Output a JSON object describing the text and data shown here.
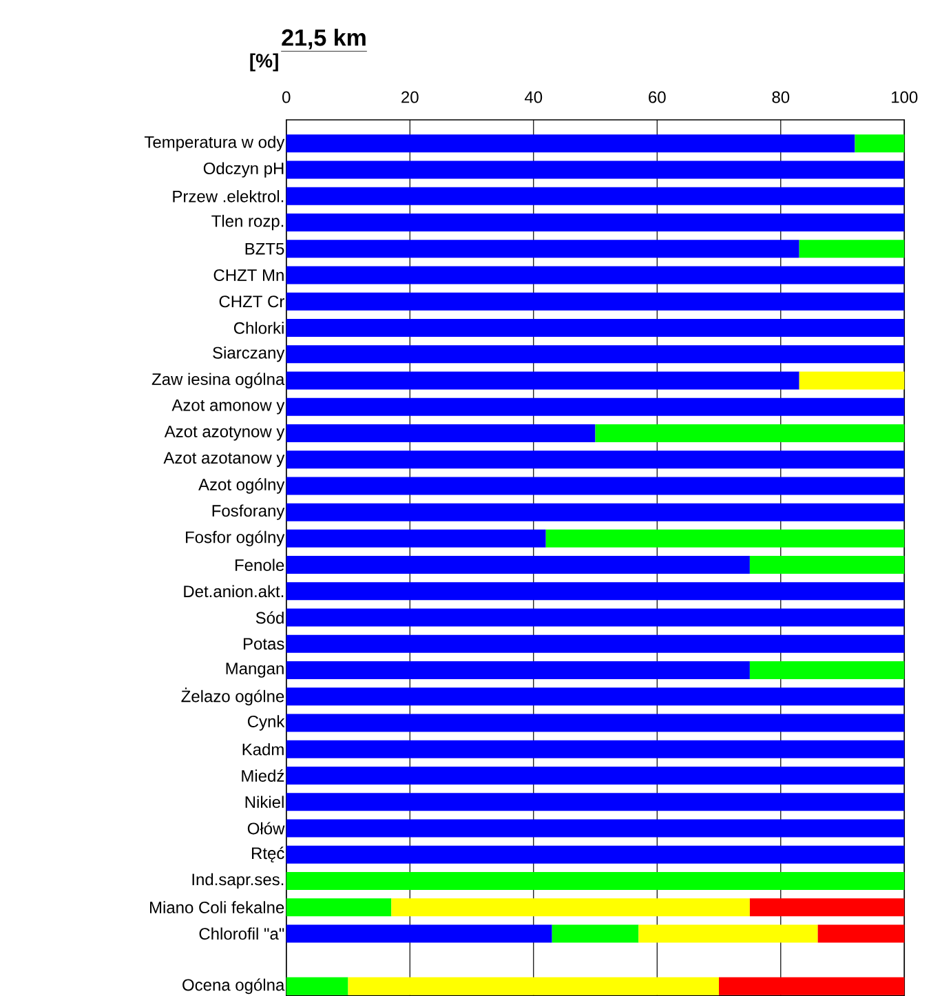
{
  "chart_data": {
    "type": "bar",
    "orientation": "horizontal",
    "stacked": true,
    "title": "21,5 km",
    "xlabel": "[%]",
    "categories": [
      "Temperatura w ody",
      "Odczyn pH",
      "Przew .elektrol.",
      "Tlen rozp.",
      "BZT5",
      "CHZT Mn",
      "CHZT Cr",
      "Chlorki",
      "Siarczany",
      "Zaw iesina ogólna",
      "Azot amonow y",
      "Azot azotynow y",
      "Azot azotanow y",
      "Azot ogólny",
      "Fosforany",
      "Fosfor ogólny",
      "Fenole",
      "Det.anion.akt.",
      "Sód",
      "Potas",
      "Mangan",
      "Żelazo ogólne",
      "Cynk",
      "Kadm",
      "Miedź",
      "Nikiel",
      "Ołów",
      "Rtęć",
      "Ind.sapr.ses.",
      "Miano Coli fekalne",
      "Chlorofil \"a\"",
      null,
      "Ocena ogólna"
    ],
    "series": [
      {
        "color": "#0000ff",
        "values": [
          92,
          100,
          100,
          100,
          83,
          100,
          100,
          100,
          100,
          83,
          100,
          50,
          100,
          100,
          100,
          42,
          75,
          100,
          100,
          100,
          75,
          100,
          100,
          100,
          100,
          100,
          100,
          100,
          null,
          null,
          43,
          null,
          null
        ]
      },
      {
        "color": "#00ff00",
        "values": [
          8,
          null,
          null,
          null,
          17,
          null,
          null,
          null,
          null,
          null,
          null,
          50,
          null,
          null,
          null,
          58,
          25,
          null,
          null,
          null,
          25,
          null,
          null,
          null,
          null,
          null,
          null,
          null,
          100,
          17,
          14,
          null,
          10
        ]
      },
      {
        "color": "#ffff00",
        "values": [
          null,
          null,
          null,
          null,
          null,
          null,
          null,
          null,
          null,
          17,
          null,
          null,
          null,
          null,
          null,
          null,
          null,
          null,
          null,
          null,
          null,
          null,
          null,
          null,
          null,
          null,
          null,
          null,
          null,
          58,
          29,
          null,
          60
        ]
      },
      {
        "color": "#ff0000",
        "values": [
          null,
          null,
          null,
          null,
          null,
          null,
          null,
          null,
          null,
          null,
          null,
          null,
          null,
          null,
          null,
          null,
          null,
          null,
          null,
          null,
          null,
          null,
          null,
          null,
          null,
          null,
          null,
          null,
          null,
          25,
          14,
          null,
          30
        ]
      }
    ],
    "xlim": [
      0,
      100
    ],
    "xticks": [
      0,
      20,
      40,
      60,
      80,
      100
    ],
    "grid": "x"
  }
}
